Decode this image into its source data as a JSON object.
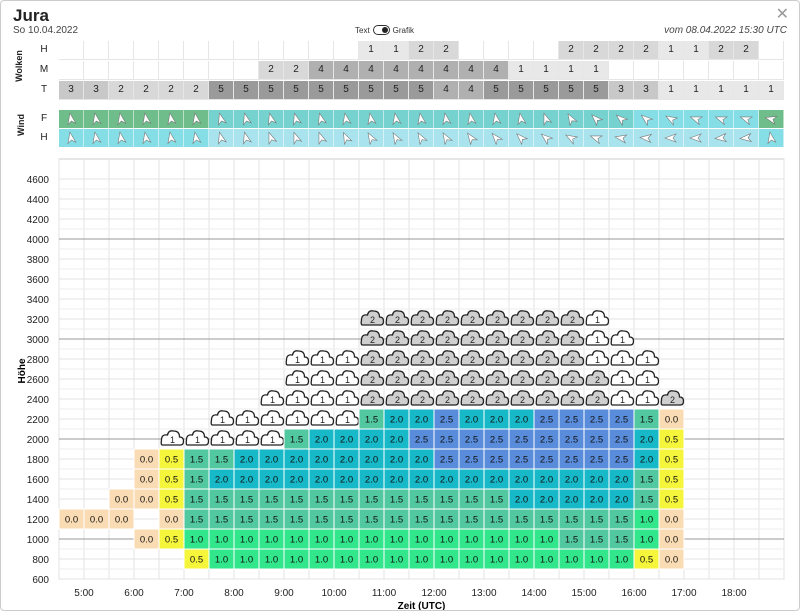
{
  "header": {
    "title": "Jura",
    "date": "So 10.04.2022",
    "updated": "vom 08.04.2022 15:30 UTC",
    "toggle_left": "Text",
    "toggle_right": "Grafik",
    "close_icon": "close-icon"
  },
  "clouds": {
    "label": "Wolken",
    "rows": [
      {
        "label": "H",
        "values": [
          "",
          "",
          "",
          "",
          "",
          "",
          "",
          "",
          "",
          "",
          "",
          "",
          "1",
          "1",
          "2",
          "2",
          "",
          "",
          "",
          "",
          "2",
          "2",
          "2",
          "2",
          "1",
          "1",
          "2",
          "2",
          ""
        ]
      },
      {
        "label": "M",
        "values": [
          "",
          "",
          "",
          "",
          "",
          "",
          "",
          "",
          "2",
          "2",
          "4",
          "4",
          "4",
          "4",
          "4",
          "4",
          "4",
          "4",
          "1",
          "1",
          "1",
          "1",
          "",
          "",
          "",
          "",
          "",
          "",
          ""
        ]
      },
      {
        "label": "T",
        "values": [
          "3",
          "3",
          "2",
          "2",
          "2",
          "2",
          "5",
          "5",
          "5",
          "5",
          "5",
          "5",
          "5",
          "5",
          "5",
          "4",
          "4",
          "5",
          "5",
          "5",
          "5",
          "5",
          "3",
          "3",
          "1",
          "1",
          "1",
          "1",
          "1"
        ]
      }
    ]
  },
  "wind": {
    "label": "Wind",
    "rows": [
      {
        "label": "F",
        "colors": [
          "#6ebd8a",
          "#6ebd8a",
          "#6ebd8a",
          "#6ebd8a",
          "#6ebd8a",
          "#6ebd8a",
          "#76d2cf",
          "#76d2cf",
          "#76d2cf",
          "#76d2cf",
          "#76d2cf",
          "#76d2cf",
          "#76d2cf",
          "#76d2cf",
          "#76d2cf",
          "#76d2cf",
          "#76d2cf",
          "#76d2cf",
          "#76d2cf",
          "#76d2cf",
          "#76d2cf",
          "#76d2cf",
          "#76d2cf",
          "#85dde6",
          "#85dde6",
          "#85dde6",
          "#85dde6",
          "#85dde6",
          "#6ebd8a"
        ],
        "dirs": [
          80,
          80,
          80,
          80,
          80,
          80,
          75,
          75,
          75,
          75,
          75,
          80,
          80,
          80,
          80,
          80,
          80,
          80,
          80,
          70,
          60,
          45,
          40,
          40,
          30,
          20,
          20,
          20,
          15
        ]
      },
      {
        "label": "H",
        "colors": [
          "#85dde6",
          "#85dde6",
          "#85dde6",
          "#85dde6",
          "#85dde6",
          "#85dde6",
          "#a9e3ee",
          "#a9e3ee",
          "#a9e3ee",
          "#a9e3ee",
          "#a9e3ee",
          "#a9e3ee",
          "#a9e3ee",
          "#a9e3ee",
          "#a9e3ee",
          "#a9e3ee",
          "#a9e3ee",
          "#a9e3ee",
          "#a9e3ee",
          "#a9e3ee",
          "#a9e3ee",
          "#a9e3ee",
          "#a9e3ee",
          "#a9e3ee",
          "#a9e3ee",
          "#a9e3ee",
          "#a9e3ee",
          "#a9e3ee",
          "#85dde6"
        ],
        "dirs": [
          80,
          80,
          80,
          80,
          80,
          80,
          75,
          75,
          70,
          70,
          70,
          65,
          60,
          60,
          60,
          60,
          55,
          50,
          45,
          40,
          30,
          20,
          10,
          5,
          0,
          0,
          -5,
          -5,
          80
        ]
      }
    ]
  },
  "chart_data": {
    "type": "heatmap",
    "ylabel": "Höhe",
    "xlabel": "Zeit (UTC)",
    "yticks": [
      "4600",
      "4400",
      "4200",
      "4000",
      "3800",
      "3600",
      "3400",
      "3200",
      "3000",
      "2800",
      "2600",
      "2400",
      "2200",
      "2000",
      "1800",
      "1600",
      "1400",
      "1200",
      "1000",
      "800",
      "600"
    ],
    "xticks": [
      "5:00",
      "6:00",
      "7:00",
      "8:00",
      "9:00",
      "10:00",
      "11:00",
      "12:00",
      "13:00",
      "14:00",
      "15:00",
      "16:00",
      "17:00",
      "18:00"
    ],
    "ylim": [
      600,
      4800
    ],
    "columns": [
      {
        "time": "4:30",
        "cells": [
          [
            "1200",
            "0.0"
          ]
        ],
        "clouds": []
      },
      {
        "time": "5:00",
        "cells": [
          [
            "1200",
            "0.0"
          ]
        ],
        "clouds": []
      },
      {
        "time": "5:30",
        "cells": [
          [
            "1400",
            "0.0"
          ],
          [
            "1200",
            "0.0"
          ]
        ],
        "clouds": []
      },
      {
        "time": "6:00",
        "cells": [
          [
            "1800",
            "0.0"
          ],
          [
            "1600",
            "0.0"
          ],
          [
            "1400",
            "0.0"
          ],
          [
            "1000",
            "0.0"
          ]
        ],
        "clouds": []
      },
      {
        "time": "6:30",
        "cells": [
          [
            "1800",
            "0.5"
          ],
          [
            "1600",
            "0.5"
          ],
          [
            "1400",
            "0.5"
          ],
          [
            "1200",
            "0.0"
          ],
          [
            "1000",
            "0.5"
          ]
        ],
        "clouds": [
          "1"
        ]
      },
      {
        "time": "7:00",
        "cells": [
          [
            "1800",
            "1.5"
          ],
          [
            "1600",
            "1.5"
          ],
          [
            "1400",
            "1.5"
          ],
          [
            "1200",
            "1.5"
          ],
          [
            "1000",
            "1.0"
          ],
          [
            "800",
            "0.5"
          ]
        ],
        "clouds": [
          "1"
        ]
      },
      {
        "time": "7:30",
        "cells": [
          [
            "1800",
            "1.5"
          ],
          [
            "1600",
            "2.0"
          ],
          [
            "1400",
            "1.5"
          ],
          [
            "1200",
            "1.5"
          ],
          [
            "1000",
            "1.0"
          ],
          [
            "800",
            "1.0"
          ]
        ],
        "clouds": [
          "1",
          "1"
        ]
      },
      {
        "time": "8:00",
        "cells": [
          [
            "1800",
            "2.0"
          ],
          [
            "1600",
            "2.0"
          ],
          [
            "1400",
            "1.5"
          ],
          [
            "1200",
            "1.5"
          ],
          [
            "1000",
            "1.0"
          ],
          [
            "800",
            "1.0"
          ]
        ],
        "clouds": [
          "1",
          "1"
        ]
      },
      {
        "time": "8:30",
        "cells": [
          [
            "1800",
            "2.0"
          ],
          [
            "1600",
            "2.0"
          ],
          [
            "1400",
            "1.5"
          ],
          [
            "1200",
            "1.5"
          ],
          [
            "1000",
            "1.0"
          ],
          [
            "800",
            "1.0"
          ]
        ],
        "clouds": [
          "1",
          "1",
          "1"
        ]
      },
      {
        "time": "9:00",
        "cells": [
          [
            "2000",
            "1.5"
          ],
          [
            "1800",
            "2.0"
          ],
          [
            "1600",
            "2.0"
          ],
          [
            "1400",
            "1.5"
          ],
          [
            "1200",
            "1.5"
          ],
          [
            "1000",
            "1.0"
          ],
          [
            "800",
            "1.0"
          ]
        ],
        "clouds": [
          "1",
          "1",
          "1",
          "1"
        ]
      },
      {
        "time": "9:30",
        "cells": [
          [
            "2000",
            "2.0"
          ],
          [
            "1800",
            "2.0"
          ],
          [
            "1600",
            "2.0"
          ],
          [
            "1400",
            "1.5"
          ],
          [
            "1200",
            "1.5"
          ],
          [
            "1000",
            "1.0"
          ],
          [
            "800",
            "1.0"
          ]
        ],
        "clouds": [
          "1",
          "1",
          "1",
          "1"
        ]
      },
      {
        "time": "10:00",
        "cells": [
          [
            "2000",
            "2.0"
          ],
          [
            "1800",
            "2.0"
          ],
          [
            "1600",
            "2.0"
          ],
          [
            "1400",
            "1.5"
          ],
          [
            "1200",
            "1.5"
          ],
          [
            "1000",
            "1.0"
          ],
          [
            "800",
            "1.0"
          ]
        ],
        "clouds": [
          "1",
          "1",
          "1",
          "1"
        ]
      },
      {
        "time": "10:30",
        "cells": [
          [
            "2200",
            "1.5"
          ],
          [
            "2000",
            "2.0"
          ],
          [
            "1800",
            "2.0"
          ],
          [
            "1600",
            "2.0"
          ],
          [
            "1400",
            "1.5"
          ],
          [
            "1200",
            "1.5"
          ],
          [
            "1000",
            "1.0"
          ],
          [
            "800",
            "1.0"
          ]
        ],
        "clouds": [
          "2",
          "2",
          "2",
          "2",
          "2"
        ]
      },
      {
        "time": "11:00",
        "cells": [
          [
            "2200",
            "2.0"
          ],
          [
            "2000",
            "2.0"
          ],
          [
            "1800",
            "2.0"
          ],
          [
            "1600",
            "2.0"
          ],
          [
            "1400",
            "1.5"
          ],
          [
            "1200",
            "1.5"
          ],
          [
            "1000",
            "1.0"
          ],
          [
            "800",
            "1.0"
          ]
        ],
        "clouds": [
          "2",
          "2",
          "2",
          "2",
          "2"
        ]
      },
      {
        "time": "11:30",
        "cells": [
          [
            "2200",
            "2.0"
          ],
          [
            "2000",
            "2.5"
          ],
          [
            "1800",
            "2.0"
          ],
          [
            "1600",
            "2.0"
          ],
          [
            "1400",
            "1.5"
          ],
          [
            "1200",
            "1.5"
          ],
          [
            "1000",
            "1.0"
          ],
          [
            "800",
            "1.0"
          ]
        ],
        "clouds": [
          "2",
          "2",
          "2",
          "2",
          "2"
        ]
      },
      {
        "time": "12:00",
        "cells": [
          [
            "2200",
            "2.5"
          ],
          [
            "2000",
            "2.5"
          ],
          [
            "1800",
            "2.5"
          ],
          [
            "1600",
            "2.0"
          ],
          [
            "1400",
            "1.5"
          ],
          [
            "1200",
            "1.5"
          ],
          [
            "1000",
            "1.0"
          ],
          [
            "800",
            "1.0"
          ]
        ],
        "clouds": [
          "2",
          "2",
          "2",
          "2",
          "2"
        ]
      },
      {
        "time": "12:30",
        "cells": [
          [
            "2200",
            "2.0"
          ],
          [
            "2000",
            "2.5"
          ],
          [
            "1800",
            "2.5"
          ],
          [
            "1600",
            "2.0"
          ],
          [
            "1400",
            "1.5"
          ],
          [
            "1200",
            "1.5"
          ],
          [
            "1000",
            "1.0"
          ],
          [
            "800",
            "1.0"
          ]
        ],
        "clouds": [
          "2",
          "2",
          "2",
          "2",
          "2"
        ]
      },
      {
        "time": "13:00",
        "cells": [
          [
            "2200",
            "2.0"
          ],
          [
            "2000",
            "2.5"
          ],
          [
            "1800",
            "2.5"
          ],
          [
            "1600",
            "2.0"
          ],
          [
            "1400",
            "1.5"
          ],
          [
            "1200",
            "1.5"
          ],
          [
            "1000",
            "1.0"
          ],
          [
            "800",
            "1.0"
          ]
        ],
        "clouds": [
          "2",
          "2",
          "2",
          "2",
          "2"
        ]
      },
      {
        "time": "13:30",
        "cells": [
          [
            "2200",
            "2.0"
          ],
          [
            "2000",
            "2.5"
          ],
          [
            "1800",
            "2.5"
          ],
          [
            "1600",
            "2.0"
          ],
          [
            "1400",
            "2.0"
          ],
          [
            "1200",
            "1.5"
          ],
          [
            "1000",
            "1.0"
          ],
          [
            "800",
            "1.0"
          ]
        ],
        "clouds": [
          "2",
          "2",
          "2",
          "2",
          "2"
        ]
      },
      {
        "time": "14:00",
        "cells": [
          [
            "2200",
            "2.5"
          ],
          [
            "2000",
            "2.5"
          ],
          [
            "1800",
            "2.5"
          ],
          [
            "1600",
            "2.0"
          ],
          [
            "1400",
            "2.0"
          ],
          [
            "1200",
            "1.5"
          ],
          [
            "1000",
            "1.0"
          ],
          [
            "800",
            "1.0"
          ]
        ],
        "clouds": [
          "2",
          "2",
          "2",
          "2",
          "2"
        ]
      },
      {
        "time": "14:30",
        "cells": [
          [
            "2200",
            "2.5"
          ],
          [
            "2000",
            "2.5"
          ],
          [
            "1800",
            "2.5"
          ],
          [
            "1600",
            "2.0"
          ],
          [
            "1400",
            "2.0"
          ],
          [
            "1200",
            "1.5"
          ],
          [
            "1000",
            "1.5"
          ],
          [
            "800",
            "1.0"
          ]
        ],
        "clouds": [
          "2",
          "2",
          "2",
          "2",
          "2"
        ]
      },
      {
        "time": "15:00",
        "cells": [
          [
            "2200",
            "2.5"
          ],
          [
            "2000",
            "2.5"
          ],
          [
            "1800",
            "2.5"
          ],
          [
            "1600",
            "2.0"
          ],
          [
            "1400",
            "2.0"
          ],
          [
            "1200",
            "1.5"
          ],
          [
            "1000",
            "1.5"
          ],
          [
            "800",
            "1.0"
          ]
        ],
        "clouds": [
          "2",
          "2",
          "1",
          "1",
          "1"
        ]
      },
      {
        "time": "15:30",
        "cells": [
          [
            "2200",
            "2.5"
          ],
          [
            "2000",
            "2.5"
          ],
          [
            "1800",
            "2.5"
          ],
          [
            "1600",
            "2.0"
          ],
          [
            "1400",
            "2.0"
          ],
          [
            "1200",
            "1.5"
          ],
          [
            "1000",
            "1.5"
          ],
          [
            "800",
            "1.0"
          ]
        ],
        "clouds": [
          "1",
          "1",
          "1",
          "1"
        ]
      },
      {
        "time": "16:00",
        "cells": [
          [
            "2200",
            "1.5"
          ],
          [
            "2000",
            "2.0"
          ],
          [
            "1800",
            "2.0"
          ],
          [
            "1600",
            "1.5"
          ],
          [
            "1400",
            "1.5"
          ],
          [
            "1200",
            "1.0"
          ],
          [
            "1000",
            "1.0"
          ],
          [
            "800",
            "0.5"
          ]
        ],
        "clouds": [
          "1",
          "1",
          "1"
        ]
      },
      {
        "time": "16:30",
        "cells": [
          [
            "2200",
            "0.0"
          ],
          [
            "2000",
            "0.5"
          ],
          [
            "1800",
            "0.5"
          ],
          [
            "1600",
            "0.5"
          ],
          [
            "1400",
            "0.5"
          ],
          [
            "1200",
            "0.0"
          ],
          [
            "1000",
            "0.0"
          ],
          [
            "800",
            "0.0"
          ]
        ],
        "clouds": [
          "2"
        ]
      }
    ],
    "colors": {
      "0.0": "#fadcb4",
      "0.5": "#f5f53c",
      "1.0": "#32e68c",
      "1.5": "#52c8a0",
      "2.0": "#17b9c8",
      "2.5": "#5a8cdc"
    }
  }
}
